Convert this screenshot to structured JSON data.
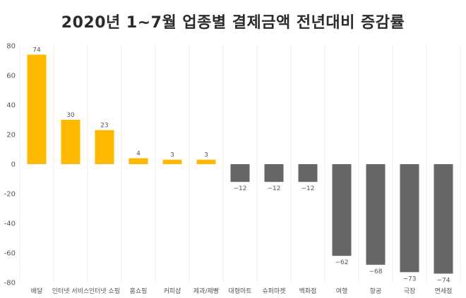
{
  "chart_data": {
    "type": "bar",
    "title": "2020년 1~7월 업종별 결제금액 전년대비 증감률",
    "xlabel": "",
    "ylabel": "",
    "ylim": [
      -80,
      80
    ],
    "yticks": [
      80,
      60,
      40,
      20,
      0,
      -20,
      -40,
      -60,
      -80
    ],
    "grid": true,
    "categories": [
      "배달",
      "인터넷 서비스",
      "인터넷 쇼핑",
      "홈쇼핑",
      "커피샵",
      "제과/제빵",
      "대형마트",
      "슈퍼마켓",
      "백화점",
      "여행",
      "항공",
      "극장",
      "면세점"
    ],
    "values": [
      74,
      30,
      23,
      4,
      3,
      3,
      -12,
      -12,
      -12,
      -62,
      -68,
      -73,
      -74
    ],
    "data_labels": [
      "74",
      "30",
      "23",
      "4",
      "3",
      "3",
      "−12",
      "−12",
      "−12",
      "−62",
      "−68",
      "−73",
      "−74"
    ],
    "colors": {
      "positive": "#FFB800",
      "negative": "#666666",
      "grid": "#eeeeee"
    }
  }
}
